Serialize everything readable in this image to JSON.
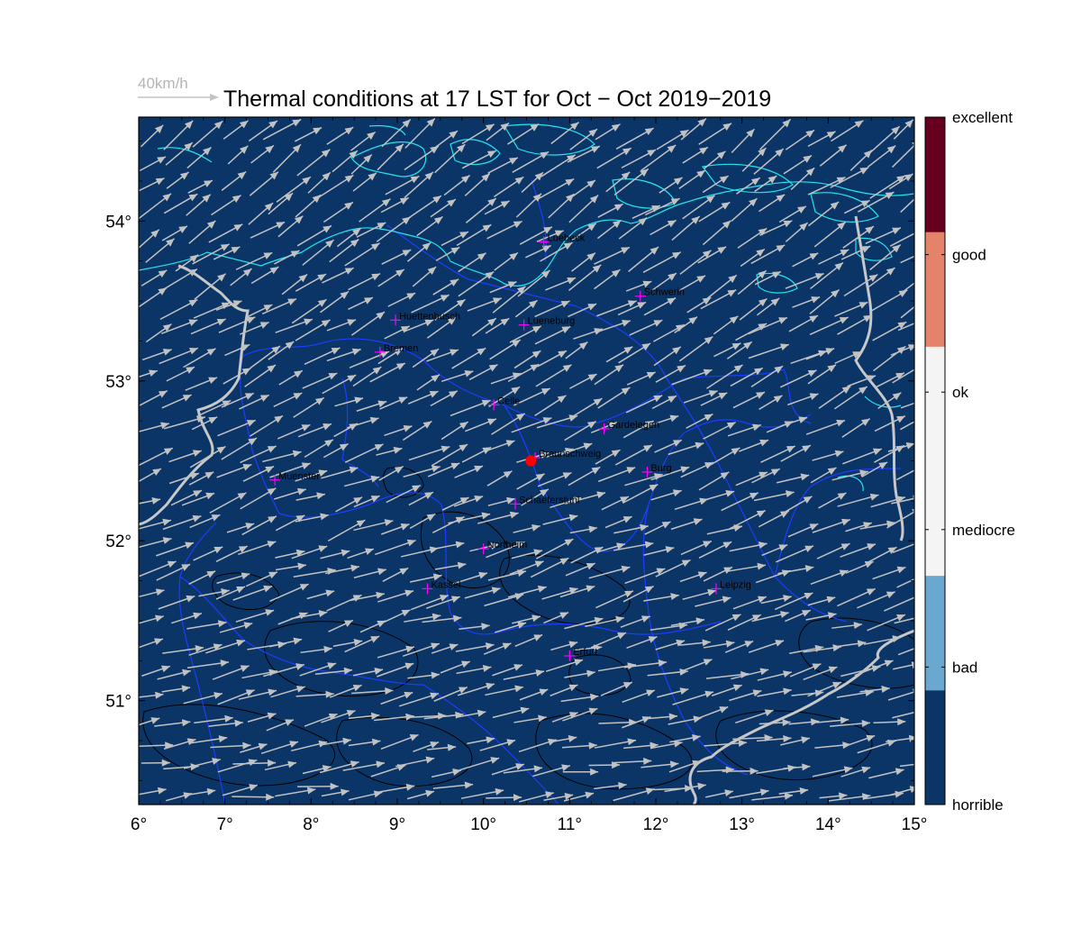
{
  "title": "Thermal conditions at 17 LST for Oct − Oct  2019−2019",
  "reference_vector": {
    "label": "40km/h"
  },
  "axes": {
    "x_ticks": [
      "6°",
      "7°",
      "8°",
      "9°",
      "10°",
      "11°",
      "12°",
      "13°",
      "14°",
      "15°"
    ],
    "y_ticks": [
      "51°",
      "52°",
      "53°",
      "54°"
    ],
    "lon_range": [
      6,
      15
    ],
    "lat_range": [
      50.35,
      54.65
    ]
  },
  "colorbar": {
    "levels": [
      {
        "label": "horrible",
        "color": "#0b3567"
      },
      {
        "label": "bad",
        "color": "#6aa8cf"
      },
      {
        "label": "mediocre",
        "color": "#f4f4f5"
      },
      {
        "label": "ok",
        "color": "#e5826a"
      },
      {
        "label": "good",
        "color": "#67001f"
      },
      {
        "label": "excellent",
        "color": "#67001f"
      }
    ],
    "segment_colors": [
      "#0b3567",
      "#6aa8cf",
      "#f4f4f5",
      "#f4f4f5",
      "#e5826a",
      "#67001f"
    ]
  },
  "map": {
    "background": "#0b3567",
    "coast_color": "#22e6ee",
    "border_color": "#c8c8c8",
    "state_color": "#1e3cff",
    "arrow_color": "#c2c2c2",
    "contour_color": "#000000",
    "thermal_class": "horrible"
  },
  "cities": [
    {
      "name": "Luebeck",
      "lon": 10.7,
      "lat": 53.87
    },
    {
      "name": "Schwerin",
      "lon": 11.82,
      "lat": 53.53
    },
    {
      "name": "Huettenbusch",
      "lon": 8.98,
      "lat": 53.38
    },
    {
      "name": "Lueneburg",
      "lon": 10.47,
      "lat": 53.35
    },
    {
      "name": "Bremen",
      "lon": 8.8,
      "lat": 53.18
    },
    {
      "name": "Celle",
      "lon": 10.12,
      "lat": 52.85
    },
    {
      "name": "Gardelegen",
      "lon": 11.4,
      "lat": 52.7
    },
    {
      "name": "Braunschweig",
      "lon": 10.6,
      "lat": 52.52
    },
    {
      "name": "Burg",
      "lon": 11.9,
      "lat": 52.43
    },
    {
      "name": "Muenster",
      "lon": 7.58,
      "lat": 52.38
    },
    {
      "name": "Schaeferstuhl",
      "lon": 10.37,
      "lat": 52.23
    },
    {
      "name": "Northeim",
      "lon": 10.0,
      "lat": 51.95
    },
    {
      "name": "Kassel",
      "lon": 9.35,
      "lat": 51.7
    },
    {
      "name": "Leipzig",
      "lon": 12.7,
      "lat": 51.7
    },
    {
      "name": "Erfurt",
      "lon": 11.0,
      "lat": 51.28
    }
  ],
  "site": {
    "name": "Braunschweig",
    "lon": 10.55,
    "lat": 52.5
  }
}
